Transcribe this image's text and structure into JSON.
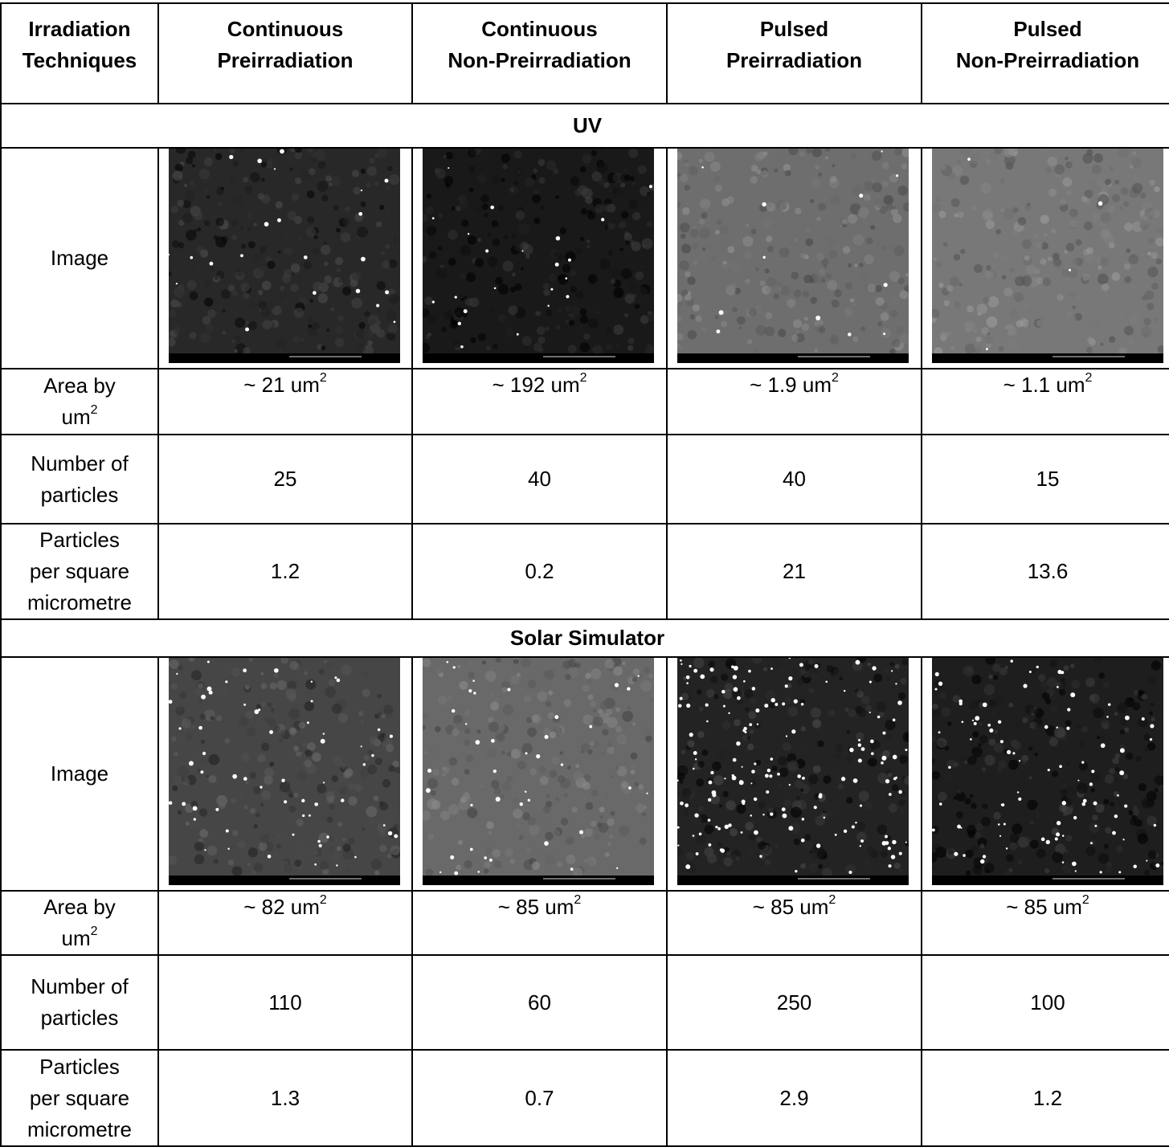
{
  "header": {
    "cells": [
      [
        "Irradiation",
        "Techniques"
      ],
      [
        "Continuous",
        "Preirradiation"
      ],
      [
        "Continuous",
        "Non-Preirradiation"
      ],
      [
        "Pulsed",
        "Preirradiation"
      ],
      [
        "Pulsed",
        "Non-Preirradiation"
      ]
    ]
  },
  "sections": [
    {
      "title": "UV",
      "rows": [
        {
          "label": [
            "Image"
          ]
        },
        {
          "label": [
            "Area by",
            {
              "text": "um",
              "sup": "2"
            }
          ],
          "cells": [
            {
              "text": "~ 21 um",
              "sup": "2"
            },
            {
              "text": "~ 192 um",
              "sup": "2"
            },
            {
              "text": "~ 1.9 um",
              "sup": "2"
            },
            {
              "text": "~ 1.1 um",
              "sup": "2"
            }
          ]
        },
        {
          "label": [
            "Number of",
            "particles"
          ],
          "cells": [
            25,
            40,
            40,
            15
          ]
        },
        {
          "label": [
            "Particles",
            "per square",
            "micrometre"
          ],
          "cells": [
            1.2,
            0.2,
            21,
            13.6
          ]
        }
      ]
    },
    {
      "title": "Solar Simulator",
      "rows": [
        {
          "label": [
            "Image"
          ]
        },
        {
          "label": [
            "Area by",
            {
              "text": "um",
              "sup": "2"
            }
          ],
          "cells": [
            {
              "text": "~ 82 um",
              "sup": "2"
            },
            {
              "text": "~ 85 um",
              "sup": "2"
            },
            {
              "text": "~ 85 um",
              "sup": "2"
            },
            {
              "text": "~ 85 um",
              "sup": "2"
            }
          ]
        },
        {
          "label": [
            "Number of",
            "particles"
          ],
          "cells": [
            110,
            60,
            250,
            100
          ]
        },
        {
          "label": [
            "Particles",
            "per square",
            "micrometre"
          ],
          "cells": [
            1.3,
            0.7,
            2.9,
            1.2
          ]
        }
      ]
    }
  ]
}
